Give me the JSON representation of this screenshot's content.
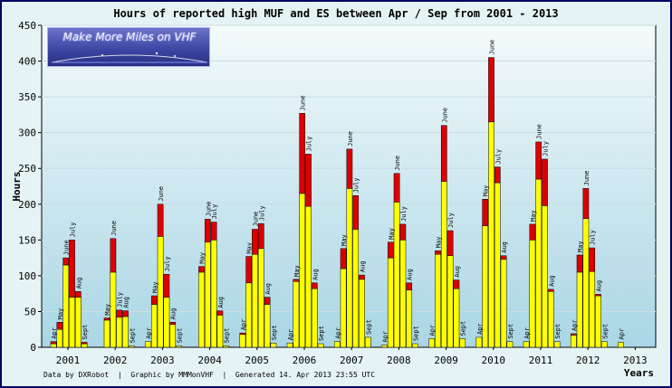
{
  "title": "Hours of reported high MUF and ES between Apr / Sep from 2001 - 2013",
  "footer": "Data by DXRobot  |  Graphic by MMMonVHF  |  Generated 14. Apr 2013 23:55 UTC",
  "logo": {
    "text": "Make More Miles on VHF"
  },
  "colors": {
    "high_muf": "#ffff00",
    "es": "#dd0000",
    "background_top": "#f4fafb",
    "background_bottom": "#a9d6e5"
  },
  "chart_data": {
    "type": "bar",
    "stacked": true,
    "title": "Hours of reported high MUF and ES between Apr / Sep from 2001 - 2013",
    "xlabel": "Years",
    "ylabel": "Hours",
    "ylim": [
      0,
      450
    ],
    "yticks": [
      0,
      50,
      100,
      150,
      200,
      250,
      300,
      350,
      400,
      450
    ],
    "grid": true,
    "months": [
      "Apr",
      "May",
      "June",
      "July",
      "Aug",
      "Sept"
    ],
    "years": [
      {
        "year": "2001",
        "yellow": [
          5,
          25,
          115,
          70,
          70,
          5
        ],
        "red": [
          3,
          10,
          10,
          80,
          8,
          2
        ]
      },
      {
        "year": "2002",
        "yellow": [
          0,
          38,
          105,
          42,
          43,
          2
        ],
        "red": [
          0,
          3,
          47,
          10,
          8,
          0
        ]
      },
      {
        "year": "2003",
        "yellow": [
          8,
          60,
          155,
          70,
          32,
          2
        ],
        "red": [
          0,
          12,
          45,
          32,
          3,
          0
        ]
      },
      {
        "year": "2004",
        "yellow": [
          0,
          105,
          147,
          150,
          45,
          2
        ],
        "red": [
          0,
          8,
          32,
          25,
          6,
          0
        ]
      },
      {
        "year": "2005",
        "yellow": [
          18,
          90,
          130,
          138,
          60,
          6
        ],
        "red": [
          2,
          37,
          35,
          35,
          10,
          0
        ]
      },
      {
        "year": "2006",
        "yellow": [
          6,
          92,
          215,
          197,
          82,
          5
        ],
        "red": [
          0,
          3,
          112,
          73,
          8,
          0
        ]
      },
      {
        "year": "2007",
        "yellow": [
          8,
          110,
          222,
          165,
          95,
          14
        ],
        "red": [
          0,
          28,
          55,
          47,
          6,
          0
        ]
      },
      {
        "year": "2008",
        "yellow": [
          3,
          125,
          203,
          150,
          80,
          5
        ],
        "red": [
          0,
          22,
          40,
          22,
          10,
          0
        ]
      },
      {
        "year": "2009",
        "yellow": [
          12,
          130,
          232,
          128,
          82,
          12
        ],
        "red": [
          0,
          5,
          78,
          35,
          12,
          0
        ]
      },
      {
        "year": "2010",
        "yellow": [
          14,
          170,
          315,
          230,
          123,
          8
        ],
        "red": [
          0,
          37,
          90,
          22,
          5,
          0
        ]
      },
      {
        "year": "2011",
        "yellow": [
          8,
          150,
          235,
          198,
          78,
          8
        ],
        "red": [
          0,
          22,
          52,
          65,
          3,
          0
        ]
      },
      {
        "year": "2012",
        "yellow": [
          17,
          105,
          180,
          106,
          72,
          8
        ],
        "red": [
          2,
          24,
          42,
          33,
          2,
          0
        ]
      },
      {
        "year": "2013",
        "yellow": [
          7,
          0,
          0,
          0,
          0,
          0
        ],
        "red": [
          0,
          0,
          0,
          0,
          0,
          0
        ]
      }
    ]
  }
}
